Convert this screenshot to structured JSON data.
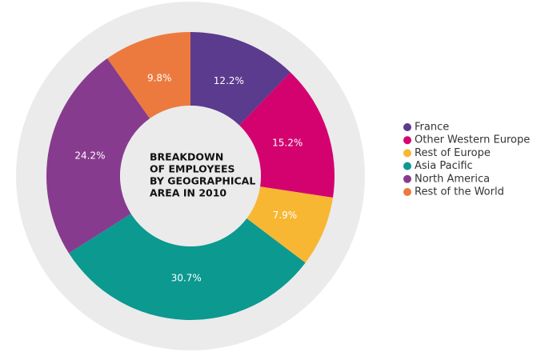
{
  "chart_data": {
    "type": "donut",
    "title": [
      "BREAKDOWN",
      "OF EMPLOYEES",
      "BY GEOGRAPHICAL",
      "AREA IN 2010"
    ],
    "categories": [
      "France",
      "Other Western Europe",
      "Rest of Europe",
      "Asia Pacific",
      "North America",
      "Rest of the World"
    ],
    "values": [
      12.2,
      15.2,
      7.9,
      30.7,
      24.2,
      9.8
    ],
    "value_labels": [
      "12.2%",
      "15.2%",
      "7.9%",
      "30.7%",
      "24.2%",
      "9.8%"
    ],
    "colors": [
      "#5b3b8d",
      "#d4026f",
      "#f8b733",
      "#0b9990",
      "#873b8e",
      "#ec7a3e"
    ],
    "legend": "right"
  }
}
